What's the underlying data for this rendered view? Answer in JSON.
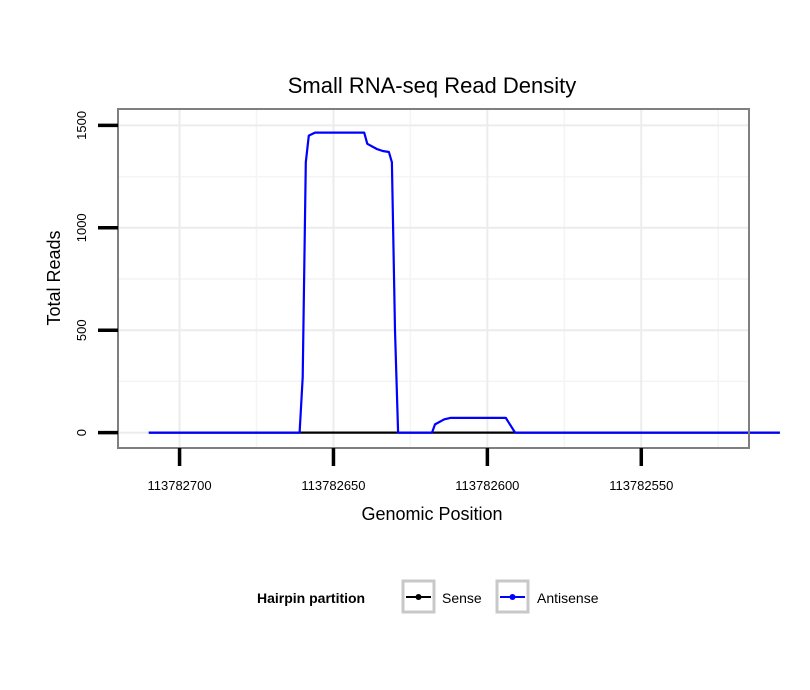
{
  "chart_data": {
    "type": "line",
    "title": "Small RNA-seq Read Density",
    "xlabel": "Genomic Position",
    "ylabel": "Total Reads",
    "xlim": [
      113782720,
      113782515
    ],
    "ylim": [
      -75,
      1580
    ],
    "x_reversed": true,
    "xticks": [
      113782700,
      113782650,
      113782600,
      113782550
    ],
    "xtick_labels": [
      "113782700",
      "113782650",
      "113782600",
      "113782550"
    ],
    "yticks": [
      0,
      500,
      1000,
      1500
    ],
    "ytick_labels": [
      "0",
      "500",
      "1000",
      "1500"
    ],
    "grid": true,
    "legend_position": "bottom",
    "legend_title": "Hairpin partition",
    "series": [
      {
        "name": "Sense",
        "color": "#000000",
        "points": [
          [
            113782710,
            0
          ],
          [
            113782505,
            0
          ]
        ]
      },
      {
        "name": "Antisense",
        "color": "#0000ff",
        "points": [
          [
            113782710,
            0
          ],
          [
            113782661,
            0
          ],
          [
            113782660,
            270
          ],
          [
            113782659,
            1320
          ],
          [
            113782658,
            1450
          ],
          [
            113782656,
            1465
          ],
          [
            113782640,
            1465
          ],
          [
            113782639,
            1410
          ],
          [
            113782636,
            1385
          ],
          [
            113782634,
            1375
          ],
          [
            113782632,
            1370
          ],
          [
            113782631,
            1320
          ],
          [
            113782630,
            500
          ],
          [
            113782629,
            0
          ],
          [
            113782618,
            0
          ],
          [
            113782617,
            40
          ],
          [
            113782614,
            65
          ],
          [
            113782612,
            72
          ],
          [
            113782596,
            72
          ],
          [
            113782594,
            72
          ],
          [
            113782591,
            0
          ],
          [
            113782505,
            0
          ]
        ]
      }
    ]
  }
}
